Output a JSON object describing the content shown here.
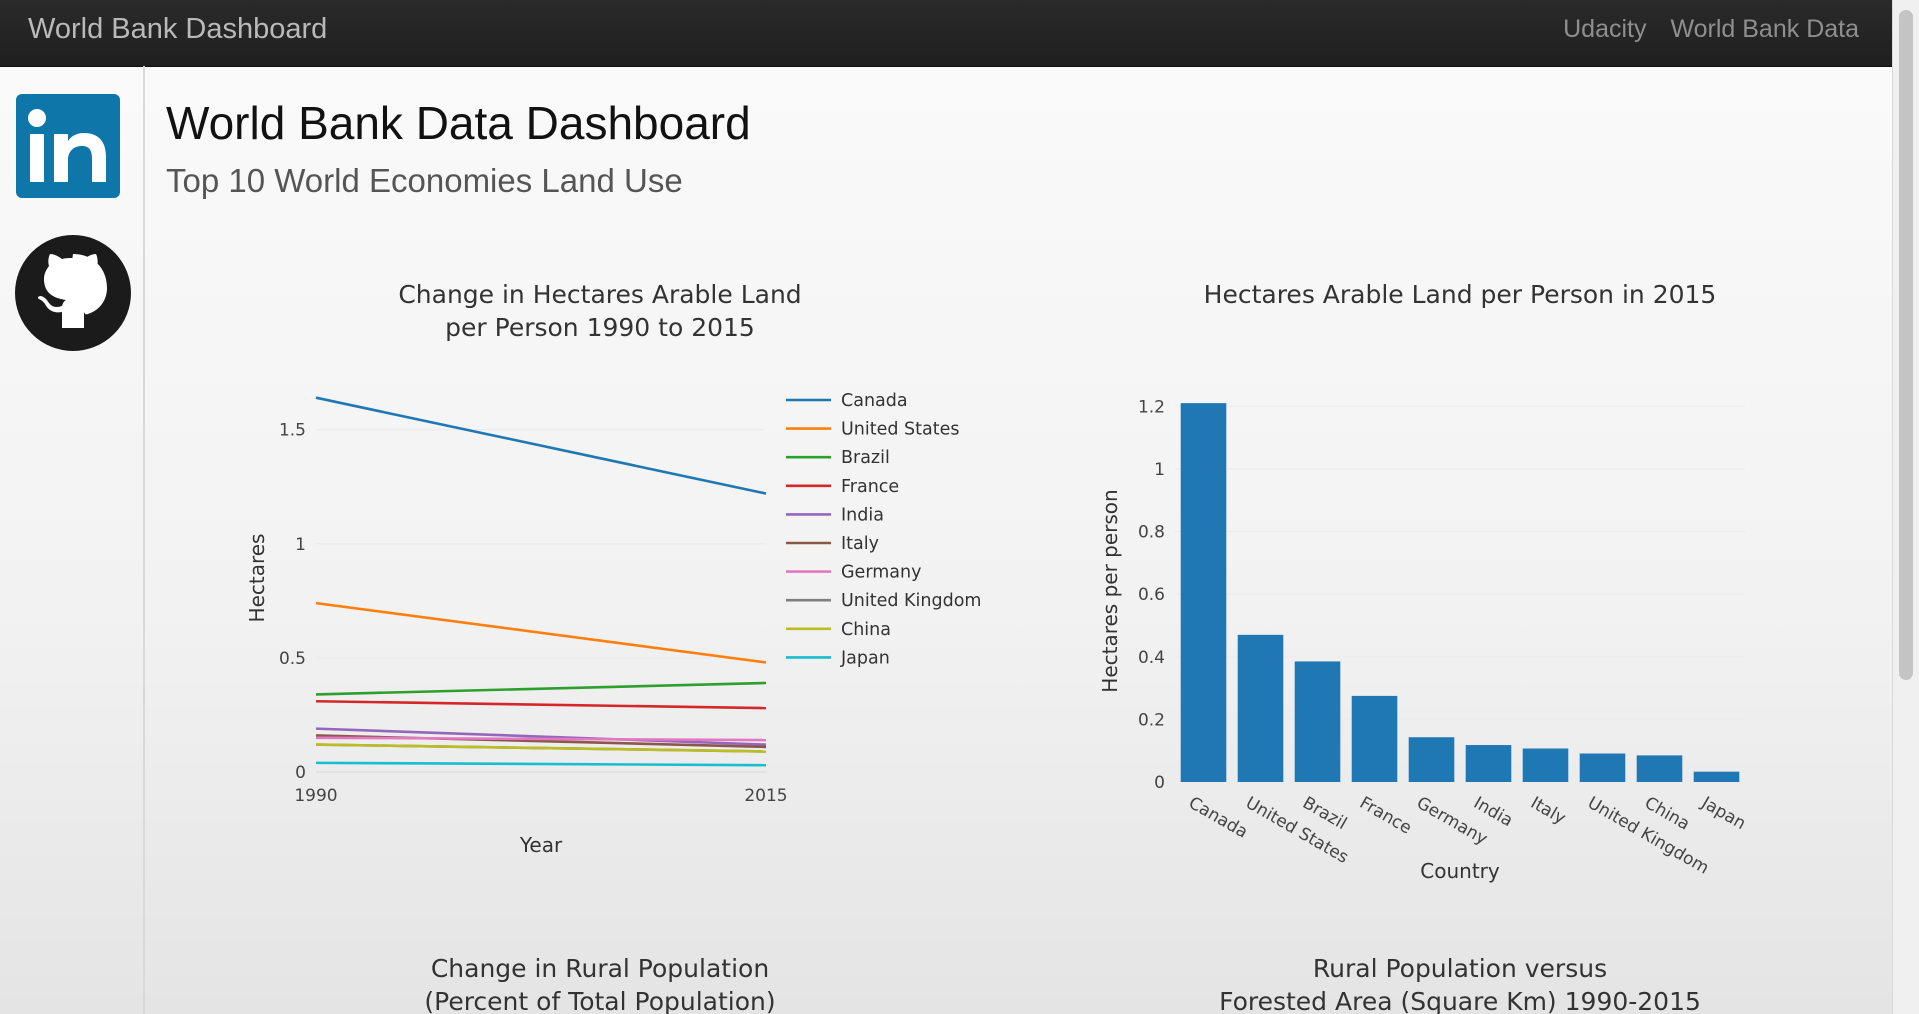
{
  "navbar": {
    "brand": "World Bank Dashboard",
    "links": [
      "Udacity",
      "World Bank Data"
    ]
  },
  "header": {
    "title": "World Bank Data Dashboard",
    "subtitle": "Top 10 World Economies Land Use"
  },
  "icons": {
    "linkedin": "linkedin-icon",
    "github": "github-icon",
    "linkedin_color": "#0e76a8"
  },
  "charts": {
    "line_title": [
      "Change in Hectares Arable Land",
      "per Person 1990 to 2015"
    ],
    "bar_title": [
      "Hectares Arable Land per Person in 2015"
    ],
    "rural_title": [
      "Change in Rural Population",
      "(Percent of Total Population)"
    ],
    "forest_title": [
      "Rural Population versus",
      "Forested Area (Square Km) 1990-2015"
    ]
  },
  "chart_data": [
    {
      "type": "line",
      "title": "Change in Hectares Arable Land per Person 1990 to 2015",
      "xlabel": "Year",
      "ylabel": "Hectares",
      "x": [
        1990,
        2015
      ],
      "x_tick_labels": [
        "1990",
        "2015"
      ],
      "ylim": [
        0,
        1.7
      ],
      "y_ticks": [
        0,
        0.5,
        1,
        1.5
      ],
      "y_tick_labels": [
        "0",
        "0.5",
        "1",
        "1.5"
      ],
      "grid": true,
      "legend_position": "right",
      "series": [
        {
          "name": "Canada",
          "values": [
            1.64,
            1.22
          ],
          "color": "#1f77b4"
        },
        {
          "name": "United States",
          "values": [
            0.74,
            0.48
          ],
          "color": "#ff7f0e"
        },
        {
          "name": "Brazil",
          "values": [
            0.34,
            0.39
          ],
          "color": "#2ca02c"
        },
        {
          "name": "France",
          "values": [
            0.31,
            0.28
          ],
          "color": "#d62728"
        },
        {
          "name": "India",
          "values": [
            0.19,
            0.12
          ],
          "color": "#9467bd"
        },
        {
          "name": "Italy",
          "values": [
            0.16,
            0.11
          ],
          "color": "#8c564b"
        },
        {
          "name": "Germany",
          "values": [
            0.15,
            0.14
          ],
          "color": "#e377c2"
        },
        {
          "name": "United Kingdom",
          "values": [
            0.12,
            0.09
          ],
          "color": "#7f7f7f"
        },
        {
          "name": "China",
          "values": [
            0.12,
            0.09
          ],
          "color": "#bcbd22"
        },
        {
          "name": "Japan",
          "values": [
            0.04,
            0.03
          ],
          "color": "#17becf"
        }
      ]
    },
    {
      "type": "bar",
      "title": "Hectares Arable Land per Person in 2015",
      "xlabel": "Country",
      "ylabel": "Hectares per person",
      "categories": [
        "Canada",
        "United States",
        "Brazil",
        "France",
        "Germany",
        "India",
        "Italy",
        "United Kingdom",
        "China",
        "Japan"
      ],
      "values": [
        1.21,
        0.47,
        0.385,
        0.275,
        0.143,
        0.118,
        0.107,
        0.091,
        0.085,
        0.033
      ],
      "ylim": [
        0,
        1.22
      ],
      "y_ticks": [
        0,
        0.2,
        0.4,
        0.6,
        0.8,
        1,
        1.2
      ],
      "y_tick_labels": [
        "0",
        "0.2",
        "0.4",
        "0.6",
        "0.8",
        "1",
        "1.2"
      ],
      "grid": true,
      "bar_color": "#1f77b4"
    }
  ]
}
